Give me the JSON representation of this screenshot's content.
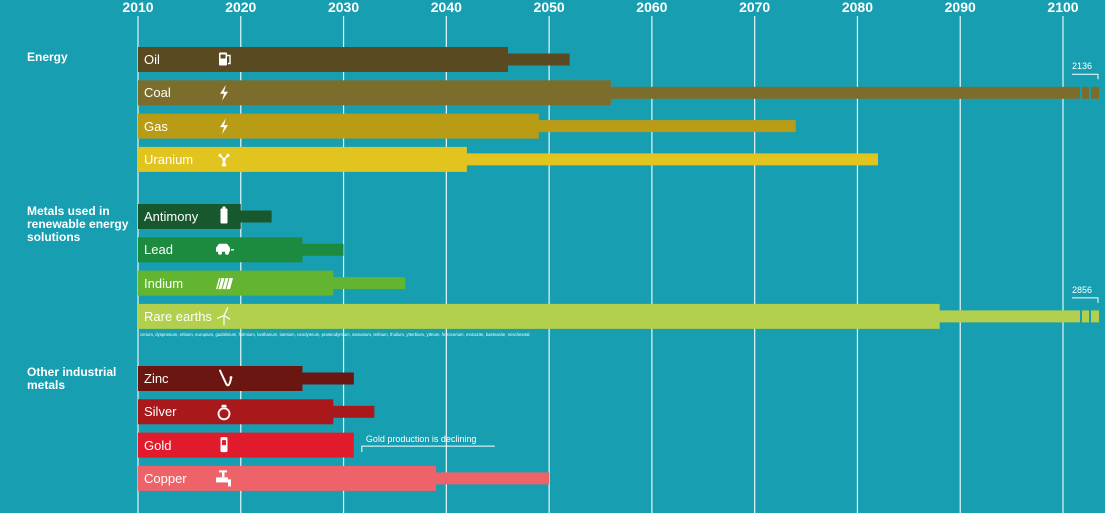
{
  "chart_data": {
    "type": "bar",
    "title": "",
    "x_axis": {
      "min": 2010,
      "max": 2100,
      "ticks": [
        2010,
        2020,
        2030,
        2040,
        2050,
        2060,
        2070,
        2080,
        2090,
        2100
      ]
    },
    "groups": [
      {
        "label": "Energy",
        "items": [
          {
            "name": "Oil",
            "icon": "fuel-pump-icon",
            "color": "#5a4a22",
            "thick_end": 2046,
            "thin_end": 2052
          },
          {
            "name": "Coal",
            "icon": "lightning-icon",
            "color": "#7d6d2c",
            "thick_end": 2056,
            "thin_end": 2136,
            "overflow_label": "2136"
          },
          {
            "name": "Gas",
            "icon": "lightning-icon",
            "color": "#b89c16",
            "thick_end": 2049,
            "thin_end": 2074
          },
          {
            "name": "Uranium",
            "icon": "radiation-icon",
            "color": "#e2c41f",
            "thick_end": 2042,
            "thin_end": 2082
          }
        ]
      },
      {
        "label": "Metals used in renewable energy solutions",
        "items": [
          {
            "name": "Antimony",
            "icon": "battery-icon",
            "color": "#17582f",
            "thick_end": 2020,
            "thin_end": 2023
          },
          {
            "name": "Lead",
            "icon": "electric-car-icon",
            "color": "#1d8b3f",
            "thick_end": 2026,
            "thin_end": 2030
          },
          {
            "name": "Indium",
            "icon": "solar-panel-icon",
            "color": "#62b431",
            "thick_end": 2029,
            "thin_end": 2036
          },
          {
            "name": "Rare earths",
            "icon": "wind-turbine-icon",
            "color": "#b2cf4e",
            "thick_end": 2088,
            "thin_end": 2856,
            "overflow_label": "2856",
            "note": "cerium, dysprosium, erbium, europium, gadolinium, holmium, lanthanum, lutetium, neodymium, praseodymium, samarium, terbium, thulium, ytterbium, yttrium, ferrocerium, monazite, bastnasite, mischmetal"
          }
        ]
      },
      {
        "label": "Other industrial metals",
        "items": [
          {
            "name": "Zinc",
            "icon": "saxophone-icon",
            "color": "#6b1611",
            "thick_end": 2026,
            "thin_end": 2031
          },
          {
            "name": "Silver",
            "icon": "ring-icon",
            "color": "#a9191c",
            "thick_end": 2029,
            "thin_end": 2033
          },
          {
            "name": "Gold",
            "icon": "phone-icon",
            "color": "#e11b2c",
            "thick_end": 2031,
            "thin_end": 2031,
            "note": "Gold production is declining"
          },
          {
            "name": "Copper",
            "icon": "tap-icon",
            "color": "#ee6369",
            "thick_end": 2039,
            "thin_end": 2050
          }
        ]
      }
    ]
  }
}
